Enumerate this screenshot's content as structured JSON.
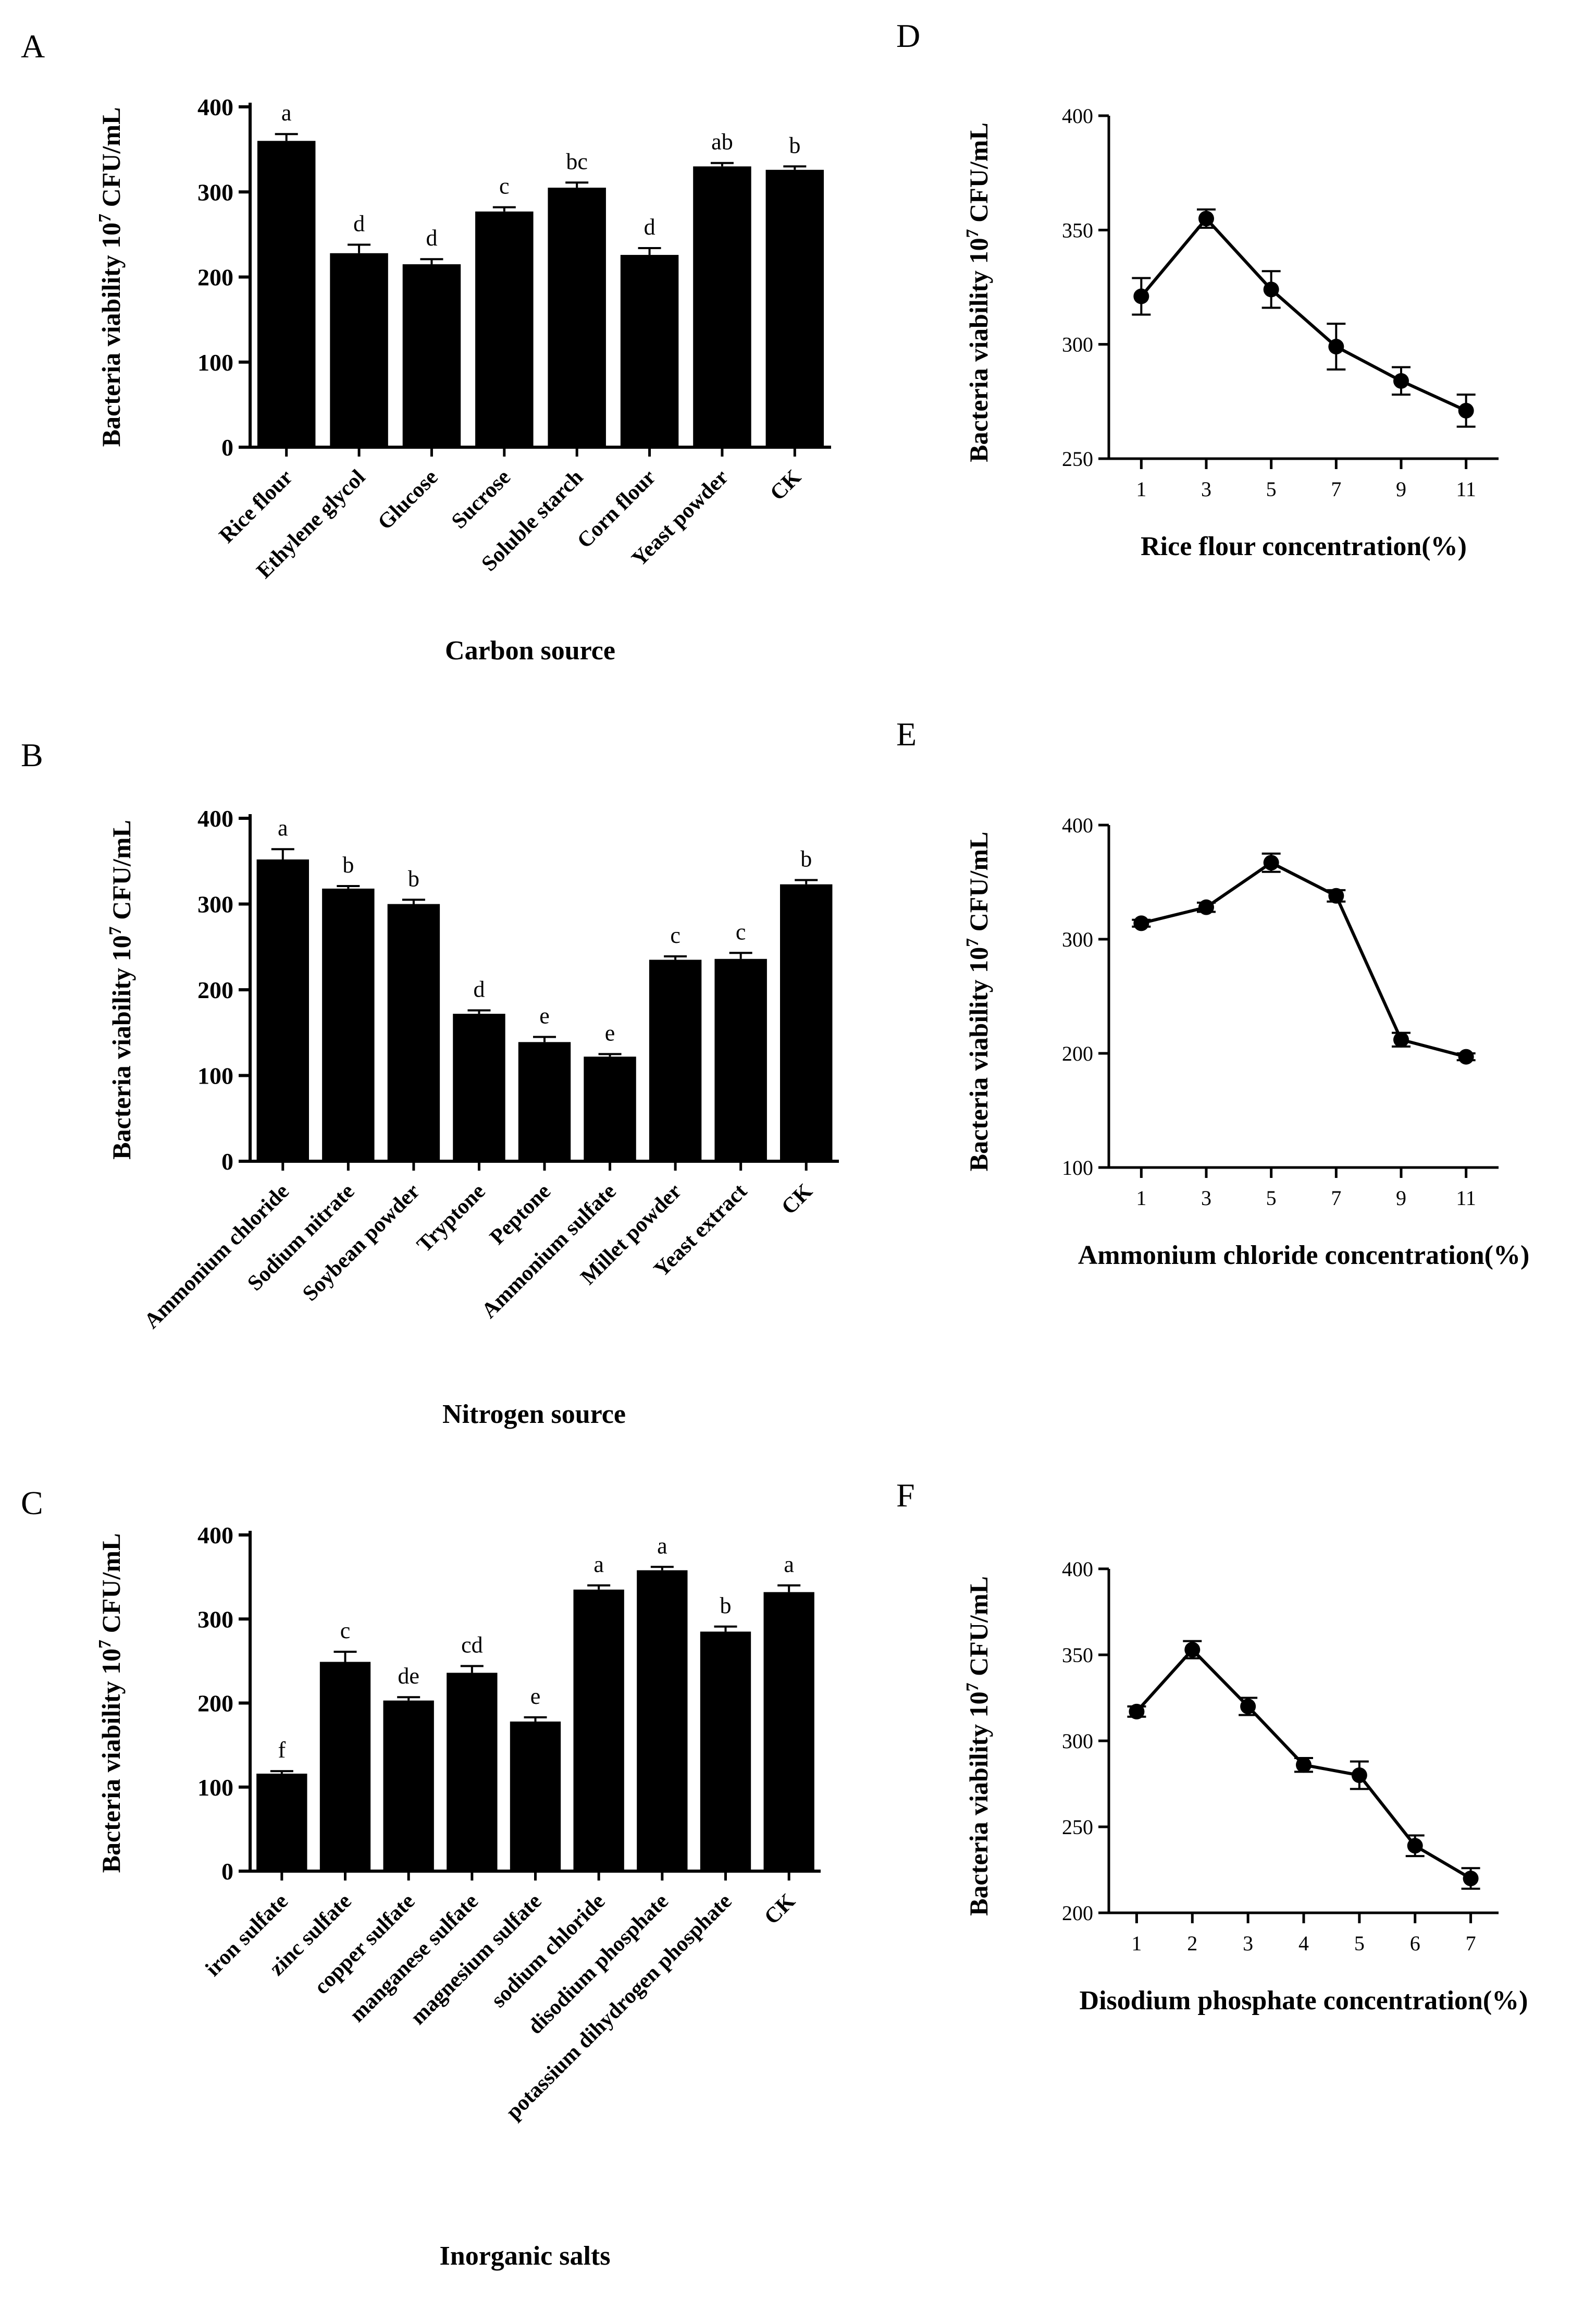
{
  "figure": {
    "y_axis_label": "Bacteria viability 10",
    "y_axis_exponent": "7",
    "y_axis_unit": " CFU/mL"
  },
  "chart_data": [
    {
      "id": "A",
      "panel_label": "A",
      "type": "bar",
      "xlabel": "Carbon source",
      "ylim": [
        0,
        400
      ],
      "yticks": [
        0,
        100,
        200,
        300,
        400
      ],
      "categories": [
        "Rice flour",
        "Ethylene glycol",
        "Glucose",
        "Sucrose",
        "Soluble starch",
        "Corn flour",
        "Yeast powder",
        "CK"
      ],
      "values": [
        360,
        228,
        215,
        277,
        305,
        226,
        330,
        326
      ],
      "errors": [
        8,
        10,
        6,
        5,
        6,
        8,
        4,
        4
      ],
      "significance": [
        "a",
        "d",
        "d",
        "c",
        "bc",
        "d",
        "ab",
        "b"
      ]
    },
    {
      "id": "B",
      "panel_label": "B",
      "type": "bar",
      "xlabel": "Nitrogen source",
      "ylim": [
        0,
        400
      ],
      "yticks": [
        0,
        100,
        200,
        300,
        400
      ],
      "categories": [
        "Ammonium chloride",
        "Sodium nitrate",
        "Soybean powder",
        "Tryptone",
        "Peptone",
        "Ammonium sulfate",
        "Millet powder",
        "Yeast extract",
        "CK"
      ],
      "values": [
        352,
        318,
        300,
        172,
        139,
        122,
        235,
        236,
        323
      ],
      "errors": [
        12,
        3,
        5,
        4,
        6,
        3,
        4,
        7,
        5
      ],
      "significance": [
        "a",
        "b",
        "b",
        "d",
        "e",
        "e",
        "c",
        "c",
        "b"
      ]
    },
    {
      "id": "C",
      "panel_label": "C",
      "type": "bar",
      "xlabel": "Inorganic salts",
      "ylim": [
        0,
        400
      ],
      "yticks": [
        0,
        100,
        200,
        300,
        400
      ],
      "categories": [
        "iron sulfate",
        "zinc sulfate",
        "copper sulfate",
        "manganese sulfate",
        "magnesium sulfate",
        "sodium chloride",
        "disodium phosphate",
        "potassium dihydrogen phosphate",
        "CK"
      ],
      "values": [
        116,
        249,
        203,
        236,
        178,
        335,
        358,
        285,
        332
      ],
      "errors": [
        3,
        12,
        4,
        8,
        5,
        5,
        4,
        6,
        8
      ],
      "significance": [
        "f",
        "c",
        "de",
        "cd",
        "e",
        "a",
        "a",
        "b",
        "a"
      ]
    },
    {
      "id": "D",
      "panel_label": "D",
      "type": "line",
      "xlabel": "Rice flour concentration(%)",
      "ylim": [
        250,
        400
      ],
      "yticks": [
        250,
        300,
        350,
        400
      ],
      "x": [
        1,
        3,
        5,
        7,
        9,
        11
      ],
      "xrange": [
        0,
        12
      ],
      "values": [
        321,
        355,
        324,
        299,
        284,
        271
      ],
      "errors": [
        8,
        4,
        8,
        10,
        6,
        7
      ]
    },
    {
      "id": "E",
      "panel_label": "E",
      "type": "line",
      "xlabel": "Ammonium chloride concentration(%)",
      "ylim": [
        100,
        400
      ],
      "yticks": [
        100,
        200,
        300,
        400
      ],
      "x": [
        1,
        3,
        5,
        7,
        9,
        11
      ],
      "xrange": [
        0,
        12
      ],
      "values": [
        314,
        328,
        367,
        338,
        212,
        197
      ],
      "errors": [
        3,
        4,
        8,
        5,
        6,
        3
      ]
    },
    {
      "id": "F",
      "panel_label": "F",
      "type": "line",
      "xlabel": "Disodium phosphate concentration(%)",
      "ylim": [
        200,
        400
      ],
      "yticks": [
        200,
        250,
        300,
        350,
        400
      ],
      "x": [
        1,
        2,
        3,
        4,
        5,
        6,
        7
      ],
      "xrange": [
        0.5,
        7.5
      ],
      "values": [
        317,
        353,
        320,
        286,
        280,
        239,
        220
      ],
      "errors": [
        3,
        5,
        5,
        4,
        8,
        6,
        6
      ]
    }
  ]
}
